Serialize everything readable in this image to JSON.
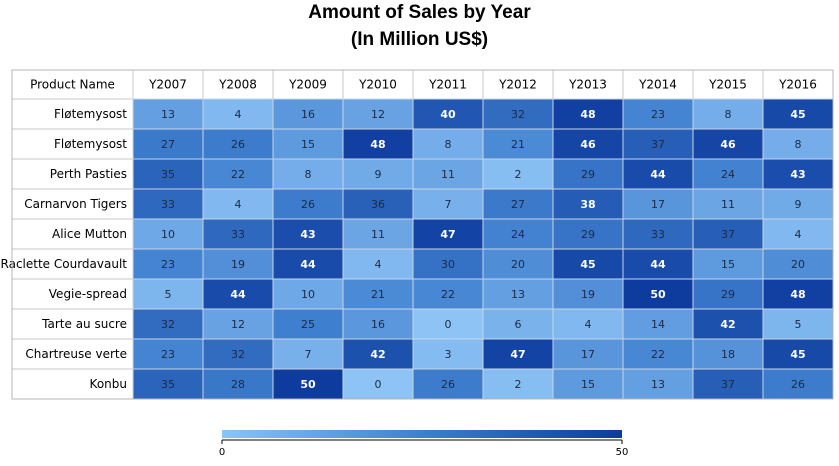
{
  "chart_data": {
    "type": "heatmap",
    "title": "Amount of Sales by Year",
    "subtitle": "(In Million US$)",
    "corner_header": "Product Name",
    "columns": [
      "Y2007",
      "Y2008",
      "Y2009",
      "Y2010",
      "Y2011",
      "Y2012",
      "Y2013",
      "Y2014",
      "Y2015",
      "Y2016"
    ],
    "rows": [
      "Fløtemysost",
      "Fløtemysost",
      "Perth Pasties",
      "Carnarvon Tigers",
      "Alice Mutton",
      "Raclette Courdavault",
      "Vegie-spread",
      "Tarte au sucre",
      "Chartreuse verte",
      "Konbu"
    ],
    "values": [
      [
        13,
        4,
        16,
        12,
        40,
        32,
        48,
        23,
        8,
        45
      ],
      [
        27,
        26,
        15,
        48,
        8,
        21,
        46,
        37,
        46,
        8
      ],
      [
        35,
        22,
        8,
        9,
        11,
        2,
        29,
        44,
        24,
        43
      ],
      [
        33,
        4,
        26,
        36,
        7,
        27,
        38,
        17,
        11,
        9
      ],
      [
        10,
        33,
        43,
        11,
        47,
        24,
        29,
        33,
        37,
        4
      ],
      [
        23,
        19,
        44,
        4,
        30,
        20,
        45,
        44,
        15,
        20
      ],
      [
        5,
        44,
        10,
        21,
        22,
        13,
        19,
        50,
        29,
        48
      ],
      [
        32,
        12,
        25,
        16,
        0,
        6,
        4,
        14,
        42,
        5
      ],
      [
        23,
        32,
        7,
        42,
        3,
        47,
        17,
        22,
        18,
        45
      ],
      [
        35,
        28,
        50,
        0,
        26,
        2,
        15,
        13,
        37,
        26
      ]
    ],
    "color_range": [
      0,
      50
    ],
    "colors": {
      "low": "#8dc3f5",
      "mid": "#3f7fcf",
      "high": "#0d3b9e"
    },
    "legend": {
      "position": "bottom",
      "min_label": "0",
      "max_label": "50"
    }
  }
}
